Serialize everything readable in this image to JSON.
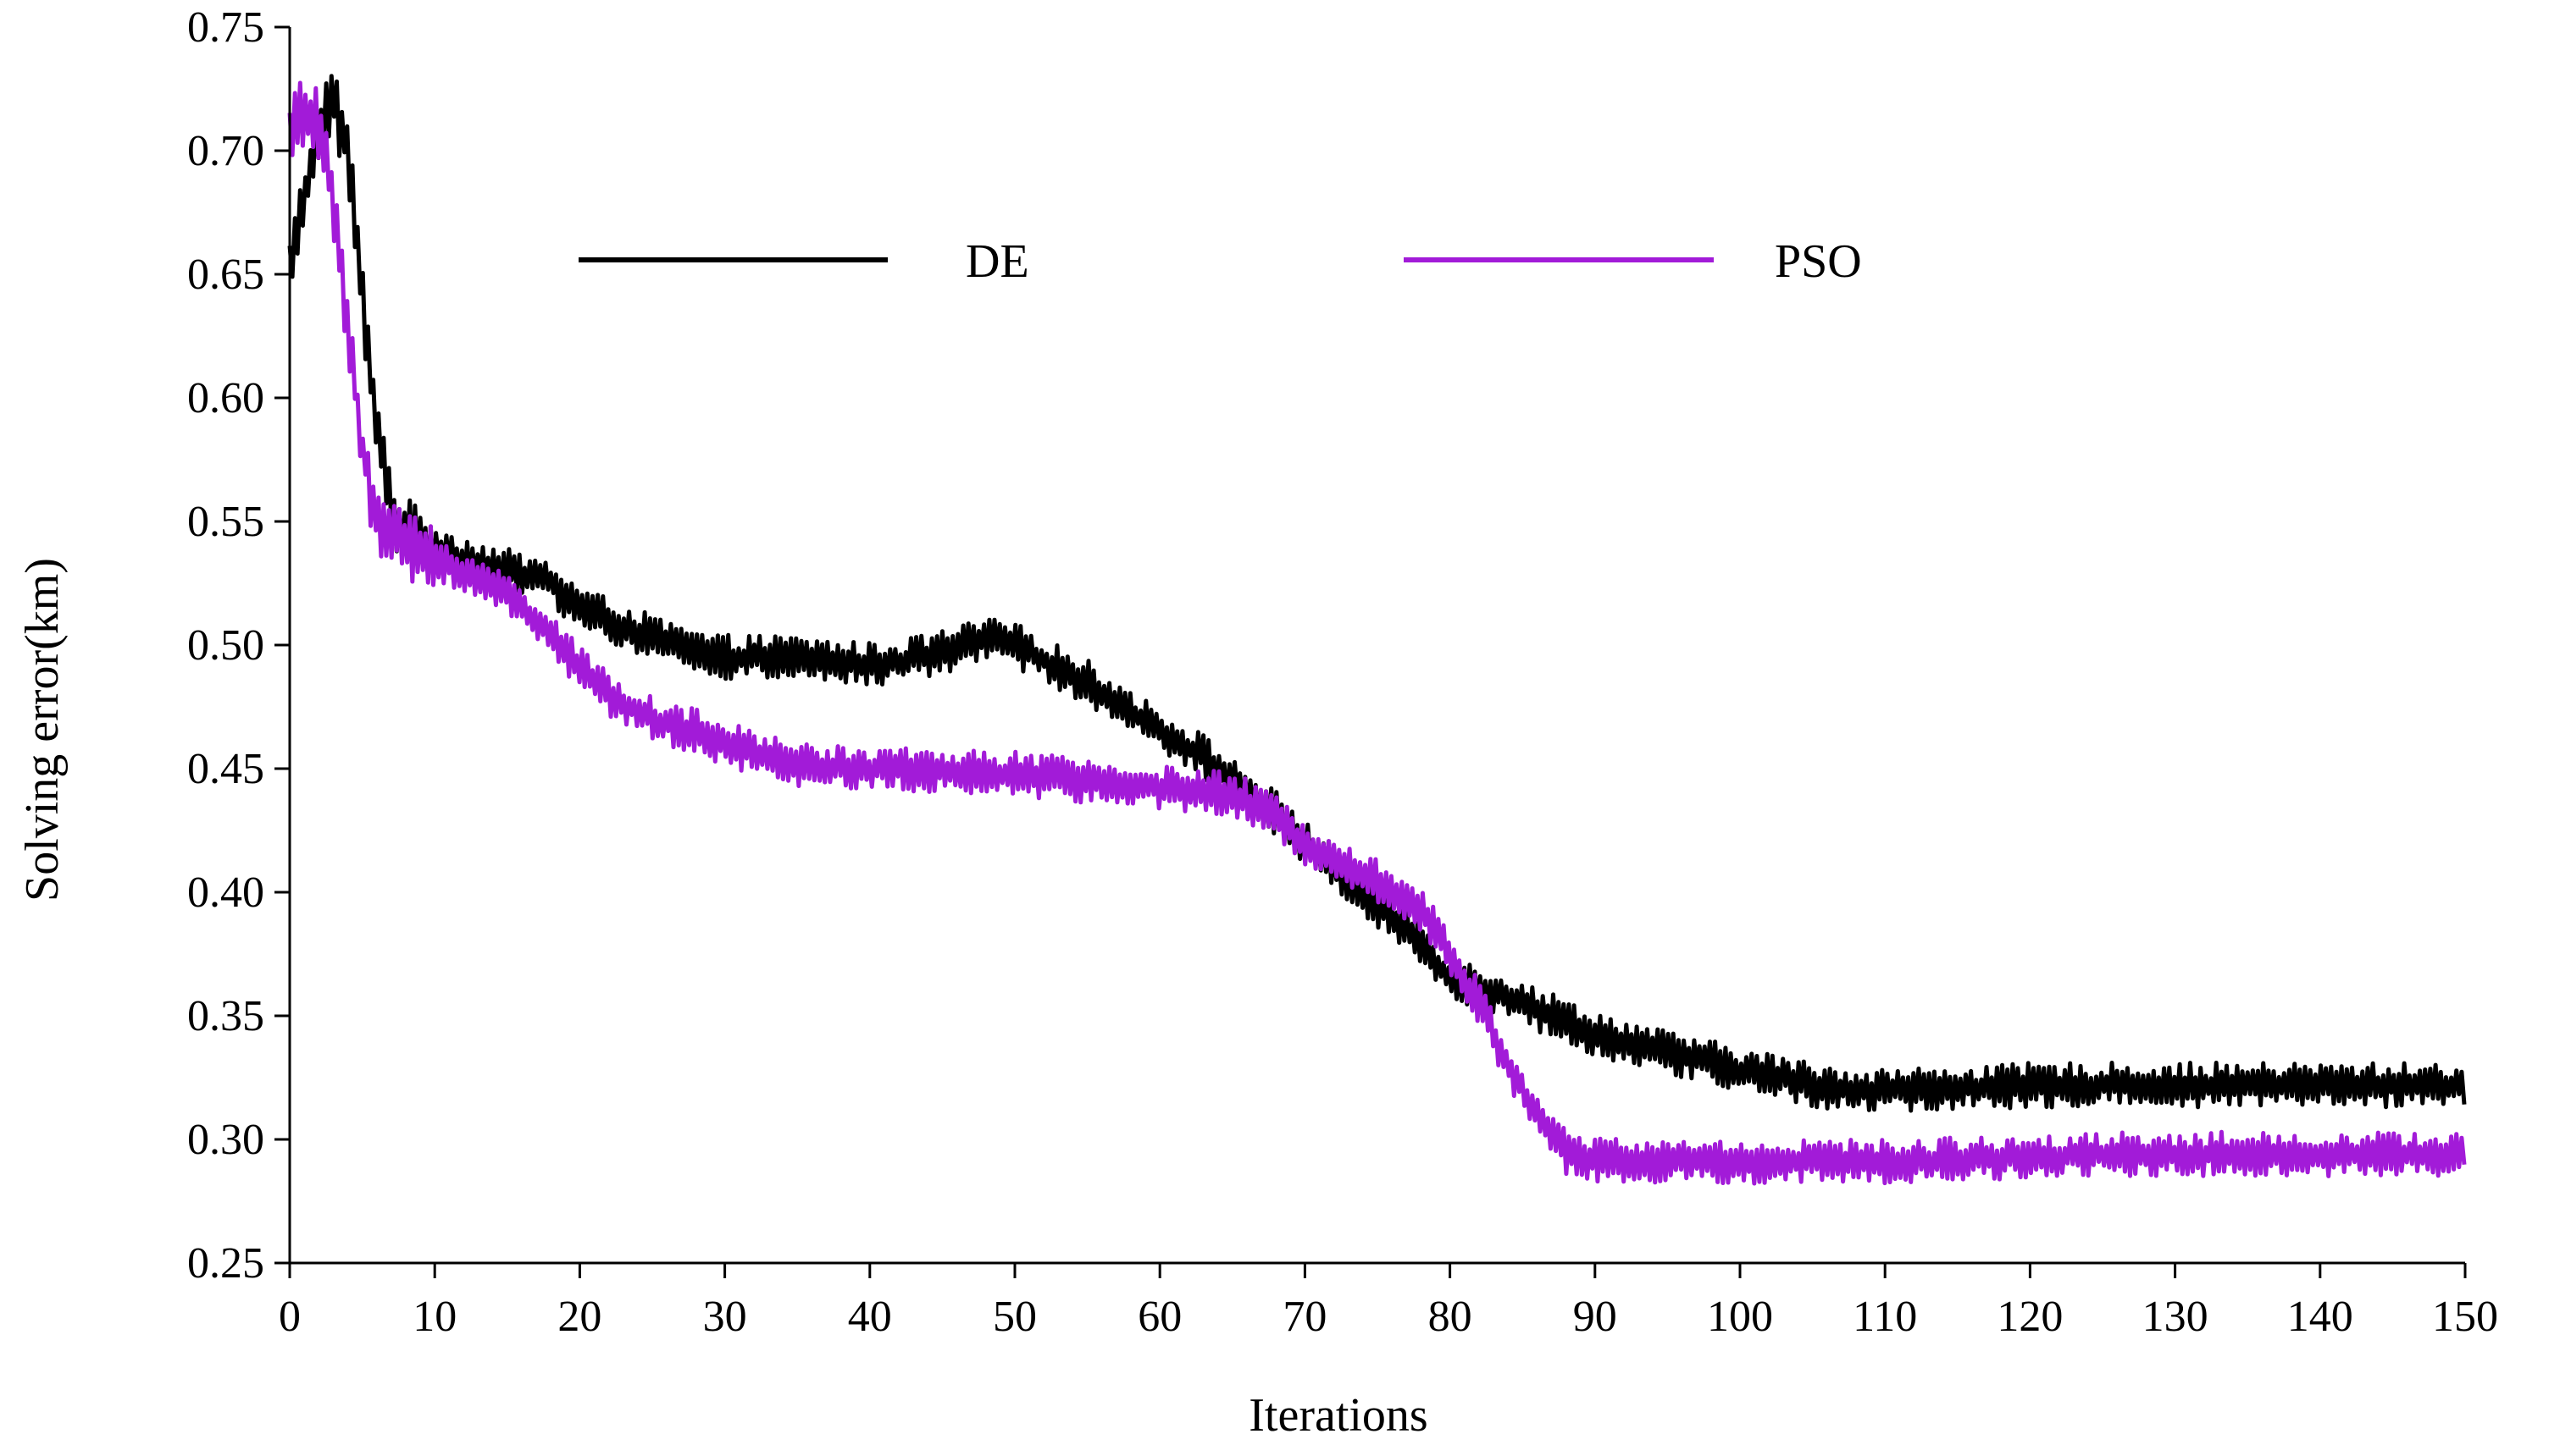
{
  "chart_data": {
    "type": "line",
    "title": "",
    "xlabel": "Iterations",
    "ylabel": "Solving error(km)",
    "xlim": [
      0,
      150
    ],
    "ylim": [
      0.25,
      0.75
    ],
    "x_ticks": [
      "0",
      "10",
      "20",
      "30",
      "40",
      "50",
      "60",
      "70",
      "80",
      "90",
      "100",
      "110",
      "120",
      "130",
      "140",
      "150"
    ],
    "y_ticks": [
      "0.25",
      "0.30",
      "0.35",
      "0.40",
      "0.45",
      "0.50",
      "0.55",
      "0.60",
      "0.65",
      "0.70",
      "0.75"
    ],
    "grid": false,
    "legend_position": "top",
    "series": [
      {
        "name": "DE",
        "color": "#000000",
        "noise": 0.009,
        "x": [
          0,
          1,
          2,
          3,
          4,
          5,
          6,
          7,
          8,
          10,
          12,
          15,
          18,
          20,
          22,
          25,
          28,
          30,
          33,
          35,
          38,
          40,
          42,
          45,
          48,
          50,
          52,
          55,
          58,
          60,
          63,
          65,
          68,
          70,
          72,
          75,
          78,
          80,
          83,
          85,
          88,
          90,
          93,
          95,
          98,
          100,
          103,
          105,
          108,
          110,
          112,
          115,
          118,
          120,
          125,
          130,
          135,
          140,
          145,
          150
        ],
        "y": [
          0.65,
          0.68,
          0.71,
          0.72,
          0.7,
          0.64,
          0.59,
          0.555,
          0.545,
          0.54,
          0.535,
          0.53,
          0.525,
          0.515,
          0.51,
          0.503,
          0.497,
          0.495,
          0.495,
          0.495,
          0.493,
          0.492,
          0.493,
          0.497,
          0.502,
          0.5,
          0.494,
          0.485,
          0.473,
          0.465,
          0.455,
          0.445,
          0.432,
          0.42,
          0.41,
          0.395,
          0.38,
          0.365,
          0.36,
          0.355,
          0.348,
          0.343,
          0.338,
          0.335,
          0.331,
          0.328,
          0.325,
          0.322,
          0.32,
          0.32,
          0.32,
          0.321,
          0.321,
          0.322,
          0.322,
          0.322,
          0.322,
          0.322,
          0.322,
          0.322
        ]
      },
      {
        "name": "PSO",
        "color": "#a21bd8",
        "noise": 0.009,
        "x": [
          0,
          1,
          2,
          3,
          4,
          5,
          6,
          7,
          8,
          10,
          12,
          15,
          18,
          20,
          22,
          25,
          28,
          30,
          33,
          35,
          38,
          40,
          45,
          50,
          55,
          60,
          65,
          68,
          70,
          72,
          75,
          78,
          80,
          82,
          84,
          86,
          88,
          90,
          95,
          100,
          105,
          110,
          115,
          120,
          125,
          130,
          135,
          140,
          145,
          150
        ],
        "y": [
          0.71,
          0.715,
          0.71,
          0.68,
          0.63,
          0.58,
          0.55,
          0.545,
          0.54,
          0.535,
          0.53,
          0.52,
          0.505,
          0.49,
          0.48,
          0.47,
          0.465,
          0.46,
          0.455,
          0.452,
          0.45,
          0.45,
          0.449,
          0.448,
          0.445,
          0.442,
          0.44,
          0.43,
          0.42,
          0.415,
          0.405,
          0.393,
          0.375,
          0.355,
          0.33,
          0.31,
          0.295,
          0.292,
          0.291,
          0.291,
          0.291,
          0.291,
          0.292,
          0.293,
          0.294,
          0.294,
          0.294,
          0.294,
          0.294,
          0.294
        ]
      }
    ]
  }
}
